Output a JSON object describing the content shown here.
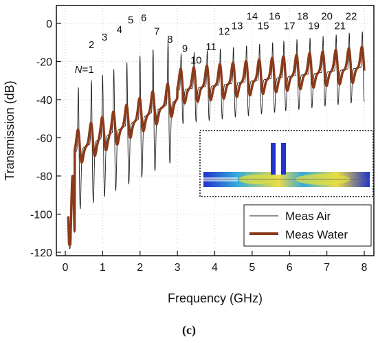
{
  "chart_data": {
    "type": "line",
    "xlabel": "Frequency (GHz)",
    "ylabel": "Transmission (dB)",
    "xlim": [
      0,
      8.2
    ],
    "ylim": [
      -120,
      10
    ],
    "xticks": [
      0,
      1,
      2,
      3,
      4,
      5,
      6,
      7,
      8
    ],
    "yticks": [
      0,
      -20,
      -40,
      -60,
      -80,
      -100,
      -120
    ],
    "grid": true,
    "legend": {
      "position": "bottom-right"
    },
    "series": [
      {
        "name": "Meas Air",
        "color": "#222222"
      },
      {
        "name": "Meas Water",
        "color": "#8B3A1A"
      }
    ],
    "mode_labels": [
      {
        "text": "2",
        "x": 0.7,
        "y": -13
      },
      {
        "text": "3",
        "x": 1.05,
        "y": -9
      },
      {
        "text": "4",
        "x": 1.45,
        "y": -5
      },
      {
        "text": "5",
        "x": 1.75,
        "y": 0
      },
      {
        "text": "6",
        "x": 2.1,
        "y": 1
      },
      {
        "text": "7",
        "x": 2.45,
        "y": -6
      },
      {
        "text": "8",
        "x": 2.8,
        "y": -10
      },
      {
        "text": "9",
        "x": 3.2,
        "y": -15
      },
      {
        "text": "10",
        "x": 3.5,
        "y": -21
      },
      {
        "text": "11",
        "x": 3.9,
        "y": -14
      },
      {
        "text": "12",
        "x": 4.25,
        "y": -6
      },
      {
        "text": "13",
        "x": 4.6,
        "y": -3
      },
      {
        "text": "14",
        "x": 5.0,
        "y": 2
      },
      {
        "text": "15",
        "x": 5.3,
        "y": -3
      },
      {
        "text": "16",
        "x": 5.6,
        "y": 2
      },
      {
        "text": "17",
        "x": 6.0,
        "y": -3
      },
      {
        "text": "18",
        "x": 6.35,
        "y": 2
      },
      {
        "text": "19",
        "x": 6.65,
        "y": -3
      },
      {
        "text": "20",
        "x": 7.0,
        "y": 2
      },
      {
        "text": "21",
        "x": 7.35,
        "y": -3
      },
      {
        "text": "22",
        "x": 7.65,
        "y": 2
      }
    ],
    "first_label": {
      "italic": "N",
      "text": "=1",
      "x": 0.25,
      "y": -26
    },
    "caption": "(c)"
  }
}
